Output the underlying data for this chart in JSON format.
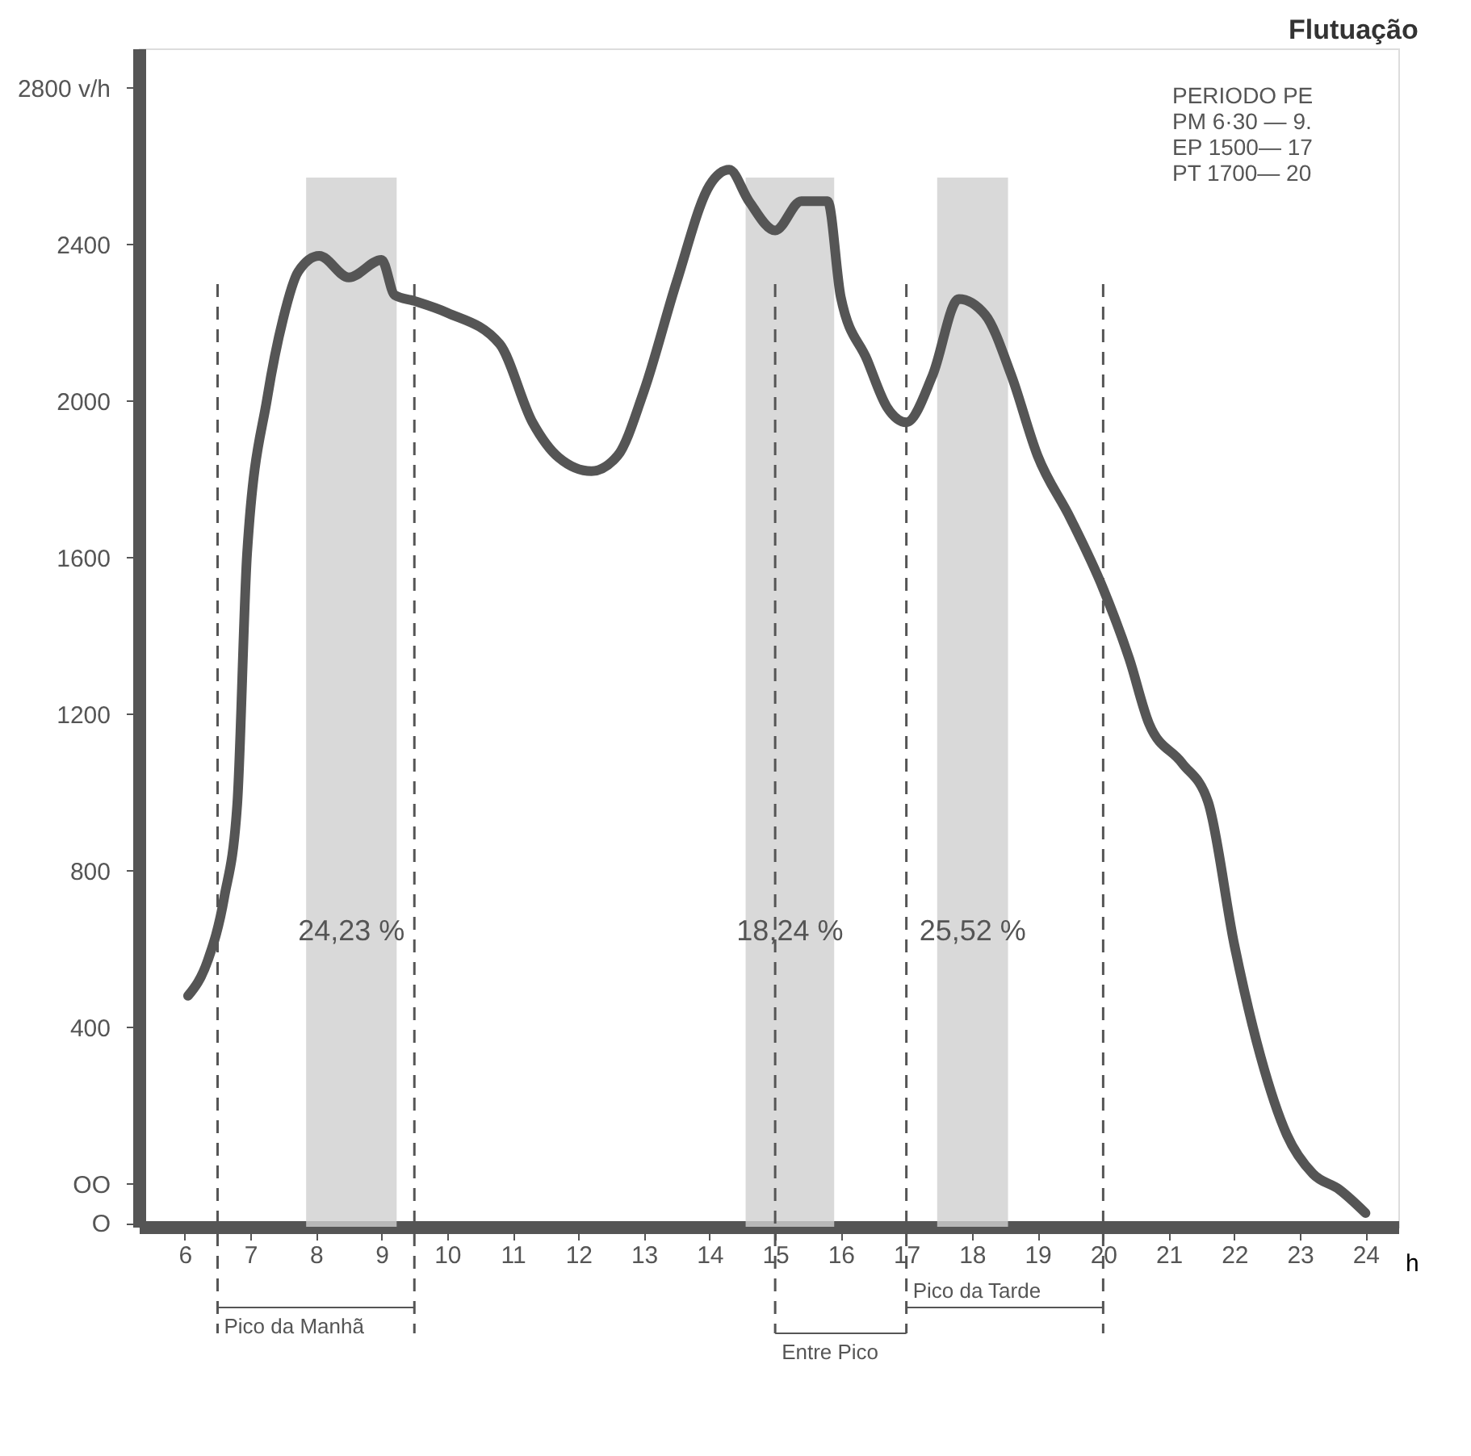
{
  "chart_data": {
    "type": "line",
    "title": "Flutuação",
    "xlabel": "h",
    "grid": false,
    "marker": "none",
    "line_style": "solid",
    "x": [
      6.05,
      6.35,
      6.6,
      6.8,
      6.95,
      7.26,
      7.5,
      7.73,
      8.05,
      8.5,
      9.0,
      9.2,
      9.5,
      10.0,
      10.8,
      11.3,
      11.7,
      12.2,
      12.6,
      13.0,
      13.5,
      14.0,
      14.3,
      14.6,
      15.0,
      15.4,
      15.8,
      16.0,
      16.4,
      16.7,
      17.0,
      17.4,
      17.8,
      18.2,
      18.6,
      19.0,
      19.5,
      20.0,
      20.4,
      20.7,
      21.2,
      21.6,
      22.0,
      22.4,
      22.8,
      23.2,
      23.6,
      24.0
    ],
    "series": [
      {
        "color": "#555555",
        "values": [
          480,
          570,
          730,
          970,
          1610,
          2010,
          2210,
          2330,
          2370,
          2315,
          2360,
          2270,
          2255,
          2225,
          2145,
          1945,
          1855,
          1820,
          1860,
          2025,
          2305,
          2550,
          2590,
          2510,
          2435,
          2510,
          2510,
          2265,
          2105,
          1985,
          1945,
          2065,
          2260,
          2220,
          2065,
          1860,
          1700,
          1520,
          1340,
          1175,
          1075,
          975,
          610,
          325,
          125,
          25,
          -15,
          -75
        ]
      }
    ],
    "xlim": [
      5.3,
      24.5
    ],
    "xticks": [
      6,
      7,
      8,
      9,
      10,
      11,
      12,
      13,
      14,
      15,
      16,
      17,
      18,
      19,
      20,
      21,
      22,
      23,
      24
    ],
    "ylim": [
      -110,
      2900
    ],
    "yticks": [
      {
        "value": -100,
        "label": "O"
      },
      {
        "value": 0,
        "label": "OO"
      },
      400,
      800,
      1200,
      1600,
      2000,
      2400,
      {
        "value": 2800,
        "label": "2800 v/h"
      }
    ],
    "bands": [
      {
        "axis": "x",
        "from": 7.85,
        "to": 9.23,
        "label": "24,23 %",
        "color": "#cfcfcf"
      },
      {
        "axis": "x",
        "from": 14.55,
        "to": 15.9,
        "label": "18,24 %",
        "color": "#cfcfcf"
      },
      {
        "axis": "x",
        "from": 17.47,
        "to": 18.55,
        "label": "25,52 %",
        "color": "#cfcfcf"
      }
    ],
    "ref_lines": [
      {
        "axis": "x",
        "value": 6.5,
        "label": "Pico da Manhã",
        "line_style": "dashed"
      },
      {
        "axis": "x",
        "value": 9.5,
        "line_style": "dashed"
      },
      {
        "axis": "x",
        "value": 15,
        "label": "Entre Pico",
        "line_style": "dashed"
      },
      {
        "axis": "x",
        "value": 17,
        "label": "Pico da Tarde",
        "line_style": "dashed"
      },
      {
        "axis": "x",
        "value": 20,
        "line_style": "dashed"
      }
    ],
    "annotations": [
      "PERIODO PE",
      "PM 6·30 — 9.",
      "EP 1500— 17",
      "PT 1700— 20"
    ]
  }
}
